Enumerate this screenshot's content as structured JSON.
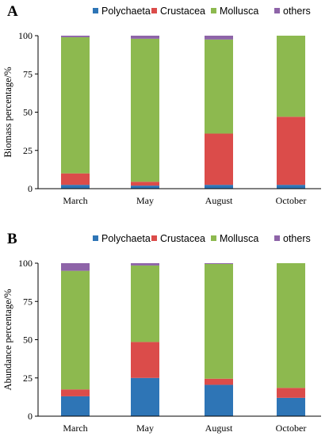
{
  "colors": {
    "Polychaeta": "#2E75B6",
    "Crustacea": "#DB4C4A",
    "Mollusca": "#8DB94F",
    "others": "#8E64A8",
    "axis": "#000000"
  },
  "chart_data": [
    {
      "panel": "A",
      "type": "bar",
      "stacked": true,
      "ylabel": "Biomass percentage/%",
      "xlabel": "",
      "ylim": [
        0,
        100
      ],
      "yticks": [
        "0",
        "25",
        "50",
        "75",
        "100"
      ],
      "categories": [
        "March",
        "May",
        "August",
        "October"
      ],
      "legend": [
        "Polychaeta",
        "Crustacea",
        "Mollusca",
        "others"
      ],
      "legend_position": "top",
      "grid": false,
      "series": [
        {
          "name": "Polychaeta",
          "values": [
            2.5,
            2,
            2.5,
            2.5
          ]
        },
        {
          "name": "Crustacea",
          "values": [
            7.5,
            2.5,
            33.5,
            44.5
          ]
        },
        {
          "name": "Mollusca",
          "values": [
            89,
            93.5,
            61.5,
            53
          ]
        },
        {
          "name": "others",
          "values": [
            1,
            2,
            2.5,
            0
          ]
        }
      ]
    },
    {
      "panel": "B",
      "type": "bar",
      "stacked": true,
      "ylabel": "Abundance percentage/%",
      "xlabel": "",
      "ylim": [
        0,
        100
      ],
      "yticks": [
        "0",
        "25",
        "50",
        "75",
        "100"
      ],
      "categories": [
        "March",
        "May",
        "August",
        "October"
      ],
      "legend": [
        "Polychaeta",
        "Crustacea",
        "Mollusca",
        "others"
      ],
      "legend_position": "top",
      "grid": false,
      "series": [
        {
          "name": "Polychaeta",
          "values": [
            13,
            25,
            20.5,
            12
          ]
        },
        {
          "name": "Crustacea",
          "values": [
            4.5,
            23.5,
            4,
            6.5
          ]
        },
        {
          "name": "Mollusca",
          "values": [
            77.5,
            50,
            75,
            81.5
          ]
        },
        {
          "name": "others",
          "values": [
            5,
            1.5,
            0.5,
            0
          ]
        }
      ]
    }
  ]
}
